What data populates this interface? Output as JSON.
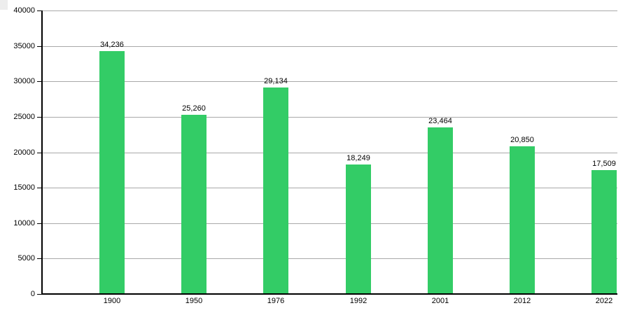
{
  "chart_data": {
    "type": "bar",
    "title": "",
    "xlabel": "",
    "ylabel": "",
    "categories": [
      "1900",
      "1950",
      "1976",
      "1992",
      "2001",
      "2012",
      "2022"
    ],
    "values": [
      34236,
      25260,
      29134,
      18249,
      23464,
      20850,
      17509
    ],
    "value_labels": [
      "34,236",
      "25,260",
      "29,134",
      "18,249",
      "23,464",
      "20,850",
      "17,509"
    ],
    "ylim": [
      0,
      40000
    ],
    "ytick_interval": 5000,
    "ytick_labels": [
      "0",
      "5000",
      "10000",
      "15000",
      "20000",
      "25000",
      "30000",
      "35000",
      "40000"
    ],
    "grid": true,
    "legend": "none",
    "colors": {
      "bar": "#33cc66",
      "gridline": "#a9a9a9",
      "axis": "#000000",
      "text": "#000000",
      "background": "#ffffff"
    }
  }
}
